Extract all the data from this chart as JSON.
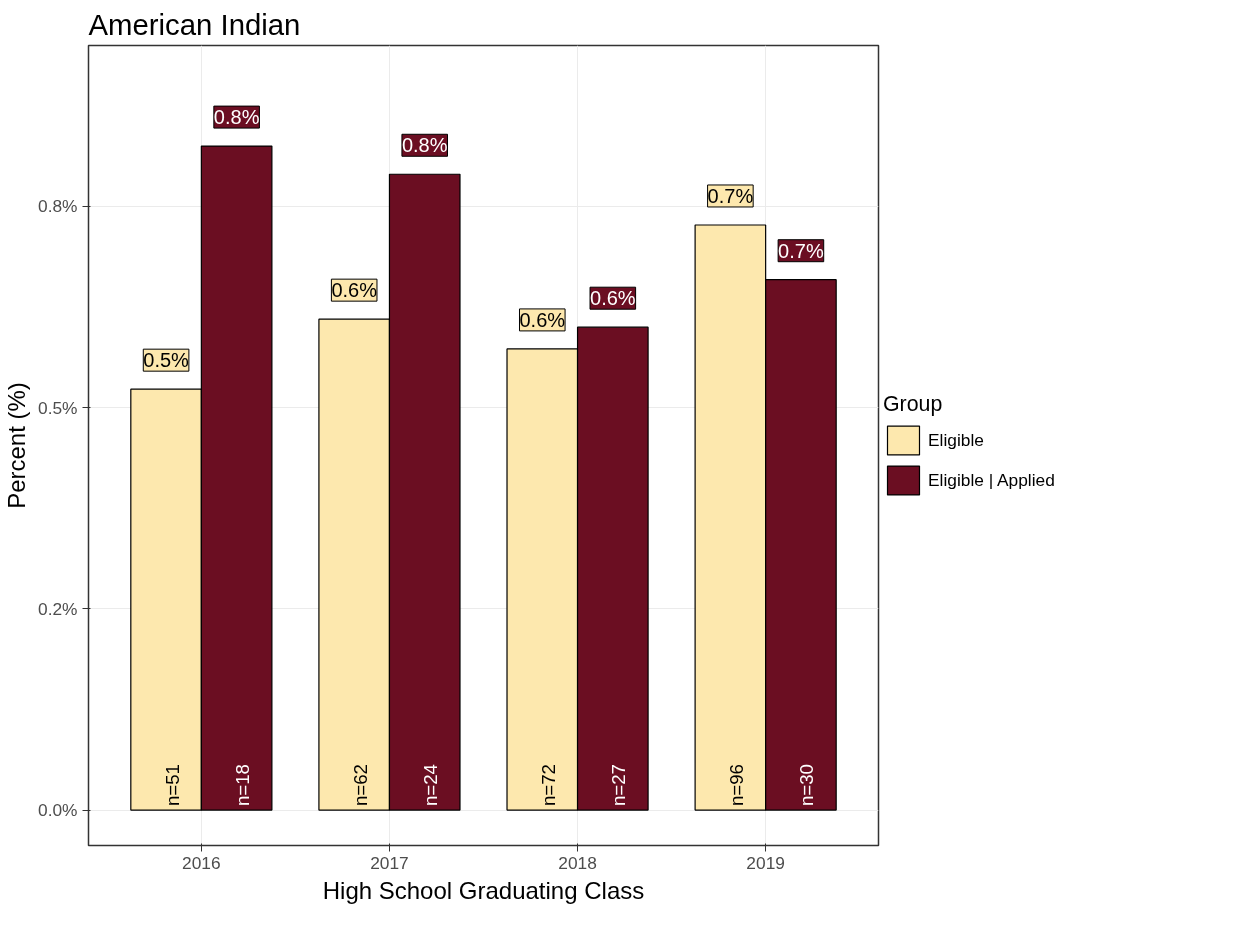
{
  "chart_data": {
    "type": "bar",
    "title": "American Indian",
    "xlabel": "High School Graduating Class",
    "ylabel": "Percent (%)",
    "legend_title": "Group",
    "categories": [
      "2016",
      "2017",
      "2018",
      "2019"
    ],
    "series": [
      {
        "name": "Eligible",
        "color": "#fde8ae",
        "values": [
          0.523,
          0.61,
          0.573,
          0.727
        ],
        "value_labels": [
          "0.5%",
          "0.6%",
          "0.6%",
          "0.7%"
        ]
      },
      {
        "name": "Eligible | Applied",
        "color": "#6b0e22",
        "values": [
          0.825,
          0.79,
          0.6,
          0.659
        ],
        "value_labels": [
          "0.8%",
          "0.8%",
          "0.6%",
          "0.7%"
        ]
      }
    ],
    "annotations": [
      {
        "text": "n=51",
        "x": "2016",
        "y": 0
      },
      {
        "text": "n=18",
        "x": "2016",
        "y": 0
      },
      {
        "text": "n=62",
        "x": "2017",
        "y": 0
      },
      {
        "text": "n=24",
        "x": "2017",
        "y": 0
      },
      {
        "text": "n=72",
        "x": "2018",
        "y": 0
      },
      {
        "text": "n=27",
        "x": "2018",
        "y": 0
      },
      {
        "text": "n=96",
        "x": "2019",
        "y": 0
      },
      {
        "text": "n=30",
        "x": "2019",
        "y": 0
      }
    ],
    "ylim": [
      -0.044,
      0.95
    ],
    "yticks": [
      {
        "value": 0,
        "label": "0.0%"
      },
      {
        "value": 0.25,
        "label": "0.2%"
      },
      {
        "value": 0.5,
        "label": "0.5%"
      },
      {
        "value": 0.75,
        "label": "0.8%"
      }
    ],
    "grid": true,
    "legend": "right"
  }
}
